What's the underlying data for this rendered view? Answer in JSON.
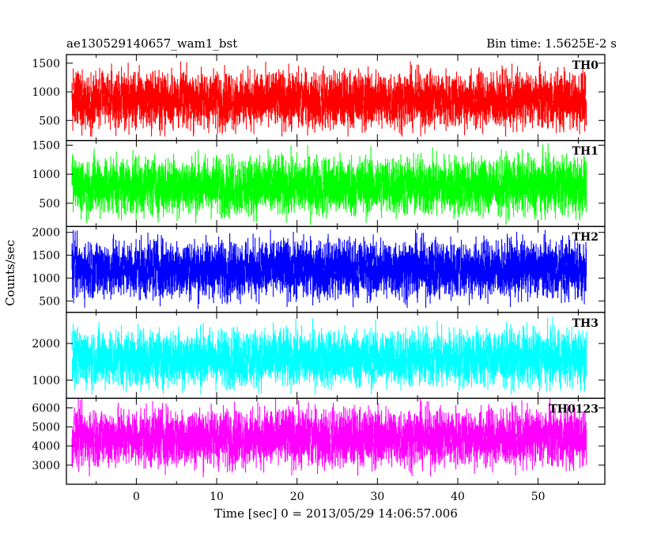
{
  "chart_data": {
    "type": "line",
    "title": "ae130529140657_wam1_bst",
    "bin_time_label": "Bin time: 1.5625E-2 s",
    "xlabel": "Time [sec] 0 = 2013/05/29 14:06:57.006",
    "ylabel": "Counts/sec",
    "xlim": [
      -8.7,
      58.3
    ],
    "x_data_range": [
      -8.0,
      56.0
    ],
    "x_ticks": [
      0,
      10,
      20,
      30,
      40,
      50
    ],
    "x_tick_labels": [
      "0",
      "10",
      "20",
      "30",
      "40",
      "50"
    ],
    "grid": false,
    "series": [
      {
        "name": "TH0",
        "color": "#ff0000",
        "ylim": [
          150,
          1650
        ],
        "y_ticks": [
          500,
          1000,
          1500
        ],
        "y_tick_labels": [
          "500",
          "1000",
          "1500"
        ],
        "mean": 860,
        "lo": 220,
        "hi": 1650
      },
      {
        "name": "TH1",
        "color": "#00ff00",
        "ylim": [
          100,
          1580
        ],
        "y_ticks": [
          500,
          1000,
          1500
        ],
        "y_tick_labels": [
          "500",
          "1000",
          "1500"
        ],
        "mean": 800,
        "lo": 130,
        "hi": 1580
      },
      {
        "name": "TH2",
        "color": "#0000ff",
        "ylim": [
          250,
          2130
        ],
        "y_ticks": [
          500,
          1000,
          1500,
          2000
        ],
        "y_tick_labels": [
          "500",
          "1000",
          "1500",
          "2000"
        ],
        "mean": 1200,
        "lo": 290,
        "hi": 2130
      },
      {
        "name": "TH3",
        "color": "#00ffff",
        "ylim": [
          500,
          2850
        ],
        "y_ticks": [
          1000,
          2000
        ],
        "y_tick_labels": [
          "1000",
          "2000"
        ],
        "mean": 1600,
        "lo": 600,
        "hi": 2850
      },
      {
        "name": "TH0123",
        "color": "#ff00ff",
        "ylim": [
          2000,
          6500
        ],
        "y_ticks": [
          3000,
          4000,
          5000,
          6000
        ],
        "y_tick_labels": [
          "3000",
          "4000",
          "5000",
          "6000"
        ],
        "mean": 4450,
        "lo": 2100,
        "hi": 6500
      }
    ]
  }
}
